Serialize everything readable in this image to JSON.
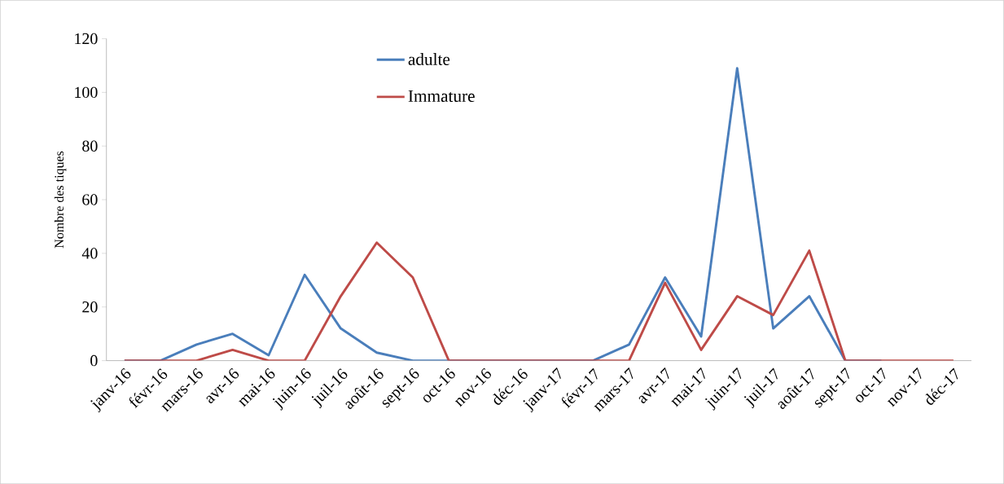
{
  "chart_data": {
    "type": "line",
    "ylabel": "Nombre des tiques",
    "categories": [
      "janv-16",
      "févr-16",
      "mars-16",
      "avr-16",
      "mai-16",
      "juin-16",
      "juil-16",
      "août-16",
      "sept-16",
      "oct-16",
      "nov-16",
      "déc-16",
      "janv-17",
      "févr-17",
      "mars-17",
      "avr-17",
      "mai-17",
      "juin-17",
      "juil-17",
      "août-17",
      "sept-17",
      "oct-17",
      "nov-17",
      "déc-17"
    ],
    "series": [
      {
        "name": "adulte",
        "color": "#4a7ebb",
        "values": [
          0,
          0,
          6,
          10,
          2,
          32,
          12,
          3,
          0,
          0,
          0,
          0,
          0,
          0,
          6,
          31,
          9,
          109,
          12,
          24,
          0,
          0,
          null,
          null
        ]
      },
      {
        "name": "Immature",
        "color": "#be4b48",
        "values": [
          0,
          0,
          0,
          4,
          0,
          0,
          24,
          44,
          31,
          0,
          0,
          0,
          0,
          0,
          0,
          29,
          4,
          24,
          17,
          41,
          0,
          0,
          0,
          0
        ]
      }
    ],
    "ylim": [
      0,
      120
    ],
    "yticks": [
      0,
      20,
      40,
      60,
      80,
      100,
      120
    ],
    "grid": false,
    "legend": "top",
    "marker": "none",
    "line_style": "solid"
  }
}
